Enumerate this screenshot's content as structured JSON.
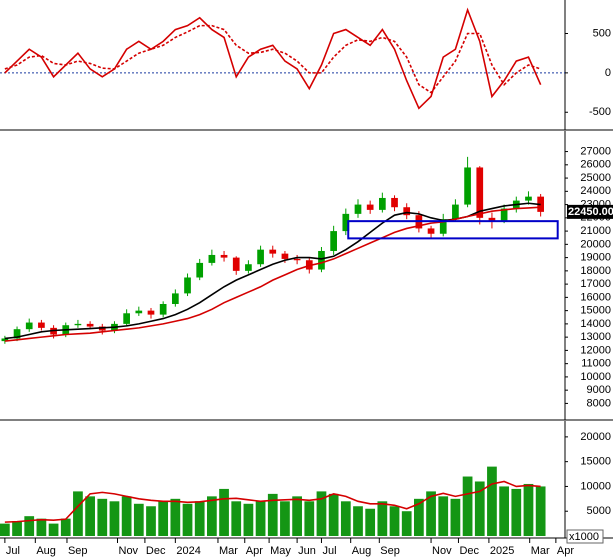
{
  "chart_data": [
    {
      "type": "line",
      "x": [
        0,
        1,
        2,
        3,
        4,
        5,
        6,
        7,
        8,
        9,
        10,
        11,
        12,
        13,
        14,
        15,
        16,
        17,
        18,
        19,
        20,
        21,
        22,
        23,
        24,
        25,
        26,
        27,
        28,
        29,
        30,
        31,
        32,
        33,
        34,
        35,
        36,
        37,
        38,
        39,
        40,
        41,
        42,
        43,
        44
      ],
      "xlim": [
        -0.4,
        46
      ],
      "ylim": [
        -700,
        900
      ],
      "yticks": [
        -500,
        0,
        500
      ],
      "hline": 0,
      "series": [
        {
          "color": "#d40000",
          "values": [
            0,
            150,
            300,
            200,
            -50,
            100,
            250,
            50,
            -50,
            50,
            300,
            400,
            300,
            400,
            550,
            600,
            700,
            550,
            450,
            -50,
            200,
            300,
            350,
            150,
            50,
            -200,
            100,
            500,
            550,
            450,
            350,
            550,
            300,
            -100,
            -450,
            -300,
            200,
            300,
            800,
            400,
            -300,
            -100,
            150,
            200,
            -150
          ]
        },
        {
          "color": "#d40000",
          "dashed": true,
          "values": [
            50,
            100,
            200,
            220,
            120,
            100,
            150,
            120,
            60,
            50,
            150,
            250,
            300,
            350,
            450,
            520,
            600,
            600,
            550,
            350,
            250,
            260,
            300,
            250,
            150,
            0,
            0,
            200,
            350,
            420,
            400,
            450,
            400,
            200,
            -150,
            -250,
            -50,
            150,
            500,
            500,
            100,
            -150,
            0,
            100,
            50
          ]
        }
      ]
    },
    {
      "type": "candlestick",
      "x": [
        0,
        1,
        2,
        3,
        4,
        5,
        6,
        7,
        8,
        9,
        10,
        11,
        12,
        13,
        14,
        15,
        16,
        17,
        18,
        19,
        20,
        21,
        22,
        23,
        24,
        25,
        26,
        27,
        28,
        29,
        30,
        31,
        32,
        33,
        34,
        35,
        36,
        37,
        38,
        39,
        40,
        41,
        42,
        43,
        44
      ],
      "xlim": [
        -0.4,
        46
      ],
      "ylim": [
        6900,
        28400
      ],
      "yticks": [
        8000,
        9000,
        10000,
        11000,
        12000,
        13000,
        14000,
        15000,
        16000,
        17000,
        18000,
        19000,
        20000,
        21000,
        22000,
        23000,
        24000,
        25000,
        26000,
        27000
      ],
      "up_color": "#00a000",
      "down_color": "#e00000",
      "open": [
        12700,
        12900,
        13600,
        14100,
        13700,
        13200,
        13900,
        14000,
        13800,
        13500,
        14000,
        14800,
        15000,
        14700,
        15500,
        16300,
        17500,
        18600,
        19200,
        19000,
        18000,
        18500,
        19600,
        19300,
        18900,
        18800,
        18100,
        19500,
        21000,
        22300,
        23000,
        22600,
        23500,
        22800,
        22200,
        21200,
        20800,
        21900,
        23000,
        25800,
        22000,
        21800,
        22700,
        23300,
        23600
      ],
      "high": [
        13100,
        13800,
        14400,
        14300,
        13900,
        14100,
        14300,
        14200,
        14000,
        14200,
        15100,
        15300,
        15200,
        15700,
        16600,
        17800,
        18900,
        19600,
        19500,
        19100,
        18800,
        19900,
        19900,
        19500,
        19200,
        19000,
        19800,
        21400,
        22700,
        23400,
        23300,
        23900,
        23700,
        23100,
        22500,
        21400,
        22300,
        23400,
        26600,
        25900,
        22400,
        23000,
        23600,
        24000,
        23800
      ],
      "low": [
        12500,
        12700,
        13400,
        13500,
        12900,
        13000,
        13700,
        13600,
        13200,
        13300,
        13800,
        14600,
        14400,
        14500,
        15300,
        16100,
        17300,
        18400,
        18700,
        17700,
        17800,
        18300,
        19000,
        18600,
        18500,
        17800,
        17900,
        19200,
        20700,
        22000,
        22300,
        22400,
        22500,
        21900,
        20900,
        20400,
        20600,
        21700,
        22800,
        21500,
        21200,
        21600,
        22400,
        23000,
        22100
      ],
      "close": [
        12900,
        13600,
        14100,
        13700,
        13200,
        13900,
        14000,
        13800,
        13500,
        14000,
        14800,
        15000,
        14700,
        15500,
        16300,
        17500,
        18600,
        19200,
        19000,
        18000,
        18500,
        19600,
        19300,
        18900,
        18800,
        18100,
        19500,
        21000,
        22300,
        23000,
        22600,
        23500,
        22800,
        22200,
        21200,
        20800,
        21900,
        23000,
        25800,
        22000,
        21800,
        22700,
        23300,
        23600,
        22450
      ],
      "series": [
        {
          "color": "#000000",
          "values": [
            12900,
            13000,
            13200,
            13400,
            13500,
            13550,
            13600,
            13650,
            13700,
            13750,
            13850,
            14000,
            14200,
            14400,
            14700,
            15100,
            15600,
            16200,
            16800,
            17300,
            17700,
            18100,
            18500,
            18800,
            19000,
            19000,
            18900,
            19100,
            19600,
            20200,
            20900,
            21600,
            22200,
            22400,
            22300,
            22000,
            21800,
            21900,
            22100,
            22500,
            22700,
            22900,
            23000,
            23100,
            23000
          ]
        },
        {
          "color": "#d40000",
          "values": [
            12700,
            12800,
            12900,
            13000,
            13100,
            13200,
            13250,
            13300,
            13400,
            13500,
            13600,
            13700,
            13850,
            14000,
            14200,
            14400,
            14700,
            15100,
            15600,
            16000,
            16400,
            16800,
            17300,
            17700,
            18100,
            18400,
            18600,
            18900,
            19300,
            19700,
            20100,
            20500,
            20900,
            21200,
            21400,
            21600,
            21700,
            21900,
            22100,
            22300,
            22500,
            22600,
            22700,
            22750,
            22800
          ]
        }
      ],
      "last_price": {
        "value": 22450,
        "label": "22450.00"
      },
      "zone": {
        "x": [
          28.2,
          45.4
        ],
        "y": [
          20450,
          21750
        ],
        "color": "#0000c8"
      }
    },
    {
      "type": "bar",
      "x": [
        0,
        1,
        2,
        3,
        4,
        5,
        6,
        7,
        8,
        9,
        10,
        11,
        12,
        13,
        14,
        15,
        16,
        17,
        18,
        19,
        20,
        21,
        22,
        23,
        24,
        25,
        26,
        27,
        28,
        29,
        30,
        31,
        32,
        33,
        34,
        35,
        36,
        37,
        38,
        39,
        40,
        41,
        42,
        43,
        44
      ],
      "xlim": [
        -0.4,
        46
      ],
      "ylim": [
        0,
        22800
      ],
      "yticks": [
        5000,
        10000,
        15000,
        20000
      ],
      "color": "#149614",
      "values": [
        2500,
        3000,
        4000,
        3500,
        2500,
        3500,
        9000,
        8000,
        7500,
        7000,
        8000,
        6500,
        6000,
        7000,
        7500,
        6500,
        7000,
        8000,
        9500,
        7000,
        6500,
        7000,
        8500,
        7000,
        8000,
        7000,
        9000,
        8500,
        7000,
        6000,
        5500,
        7000,
        6000,
        5000,
        7500,
        9000,
        8000,
        7500,
        12000,
        11000,
        14000,
        10000,
        9500,
        10500,
        10000
      ],
      "series": [
        {
          "color": "#d40000",
          "values": [
            2800,
            2900,
            3100,
            3300,
            3200,
            3400,
            6000,
            8500,
            8800,
            8500,
            8000,
            7500,
            7200,
            7000,
            7000,
            6800,
            6900,
            7200,
            7500,
            7600,
            7300,
            7000,
            7200,
            7300,
            7400,
            7200,
            7500,
            8500,
            8000,
            7000,
            6500,
            6500,
            6200,
            5500,
            6500,
            8000,
            8600,
            8000,
            8500,
            9000,
            10500,
            11000,
            10000,
            10200,
            10000
          ]
        }
      ],
      "unit_label": "x1000",
      "xticks": [
        {
          "value": 0,
          "label": "Jul"
        },
        {
          "value": 2.5,
          "label": "Aug"
        },
        {
          "value": 5.1,
          "label": "Sep"
        },
        {
          "value": 9.25,
          "label": "Nov"
        },
        {
          "value": 11.5,
          "label": "Dec"
        },
        {
          "value": 14,
          "label": "2024"
        },
        {
          "value": 17.5,
          "label": "Mar"
        },
        {
          "value": 19.7,
          "label": "Apr"
        },
        {
          "value": 21.7,
          "label": "May"
        },
        {
          "value": 24,
          "label": "Jun"
        },
        {
          "value": 26,
          "label": "Jul"
        },
        {
          "value": 28.4,
          "label": "Aug"
        },
        {
          "value": 30.75,
          "label": "Sep"
        },
        {
          "value": 35,
          "label": "Nov"
        },
        {
          "value": 37.25,
          "label": "Dec"
        },
        {
          "value": 39.75,
          "label": "2025"
        },
        {
          "value": 43.1,
          "label": "Mar"
        },
        {
          "value": 45.25,
          "label": "Apr"
        }
      ]
    }
  ]
}
